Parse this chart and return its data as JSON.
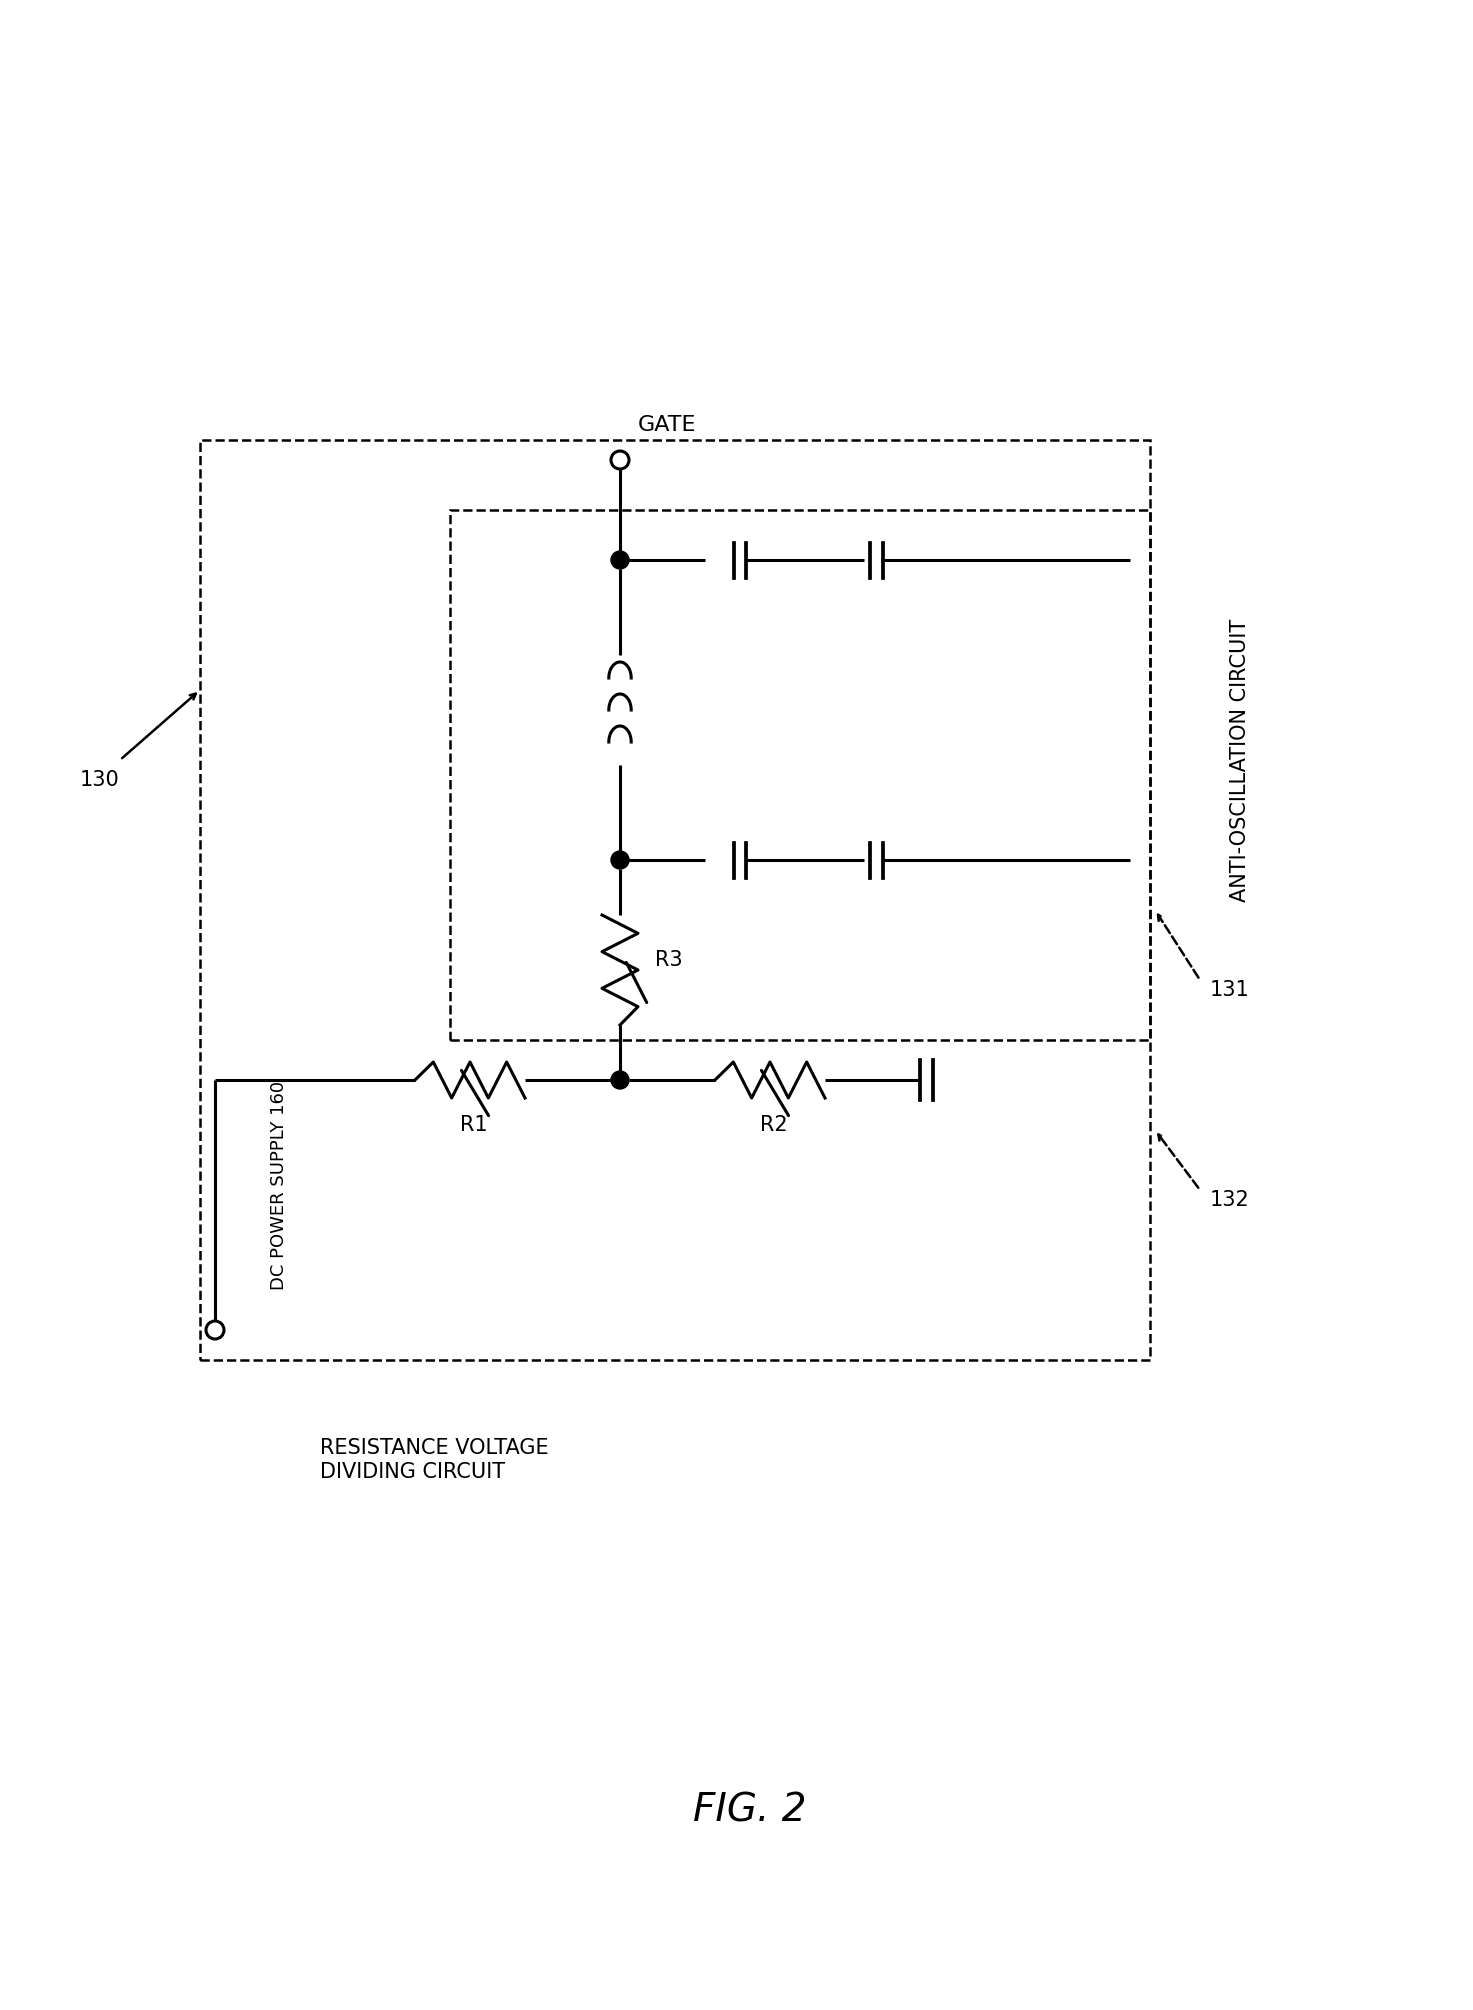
{
  "bg_color": "#ffffff",
  "line_color": "#000000",
  "dashed_color": "#000000",
  "title": "FIG. 2",
  "label_130": "130",
  "label_131": "131",
  "label_132": "132",
  "label_160": "DC POWER SUPPLY 160",
  "label_131_text": "ANTI-OSCILLATION CIRCUIT",
  "label_132_text": "RESISTANCE VOLTAGE\nDIVIDING CIRCUIT",
  "label_gate": "GATE",
  "label_R1": "R1",
  "label_R2": "R2",
  "label_R3": "R3"
}
